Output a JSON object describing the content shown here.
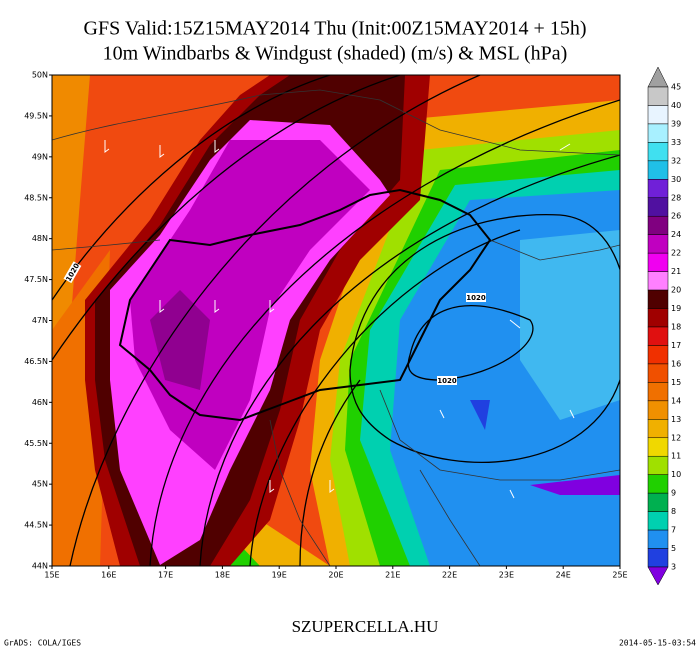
{
  "header": {
    "title_line1": "GFS Valid:15Z15MAY2014 Thu (Init:00Z15MAY2014 + 15h)",
    "title_line2": "10m Windbarbs & Windgust (shaded) (m/s) & MSL (hPa)"
  },
  "map_axes": {
    "lat_labels": [
      "50N",
      "49.5N",
      "49N",
      "48.5N",
      "48N",
      "47.5N",
      "47N",
      "46.5N",
      "46N",
      "45.5N",
      "45N",
      "44.5N",
      "44N"
    ],
    "lon_labels": [
      "15E",
      "16E",
      "17E",
      "18E",
      "19E",
      "20E",
      "21E",
      "22E",
      "23E",
      "24E",
      "25E"
    ]
  },
  "isobar_labels": [
    "1020",
    "1020",
    "1020"
  ],
  "colorbar": {
    "labels": [
      45,
      40,
      39,
      33,
      32,
      30,
      28,
      26,
      24,
      22,
      21,
      20,
      19,
      18,
      17,
      16,
      15,
      14,
      13,
      12,
      11,
      10,
      9,
      8,
      7,
      5,
      3
    ],
    "colors": [
      "#a0a0a0",
      "#c8c8c8",
      "#e8f4ff",
      "#a8f0ff",
      "#40e0f0",
      "#20c0e8",
      "#7020d8",
      "#5010a0",
      "#800080",
      "#c000c0",
      "#f000f0",
      "#ff80ff",
      "#500000",
      "#a00000",
      "#e01010",
      "#f03000",
      "#f05000",
      "#f07000",
      "#f09000",
      "#f0b000",
      "#f0d800",
      "#a0e000",
      "#20d000",
      "#00b050",
      "#00d0b0",
      "#2090f0",
      "#2040e0",
      "#8000e0"
    ]
  },
  "footer": {
    "site": "SZUPERCELLA.HU",
    "credit": "GrADS: COLA/IGES",
    "timestamp": "2014-05-15-03:54"
  }
}
